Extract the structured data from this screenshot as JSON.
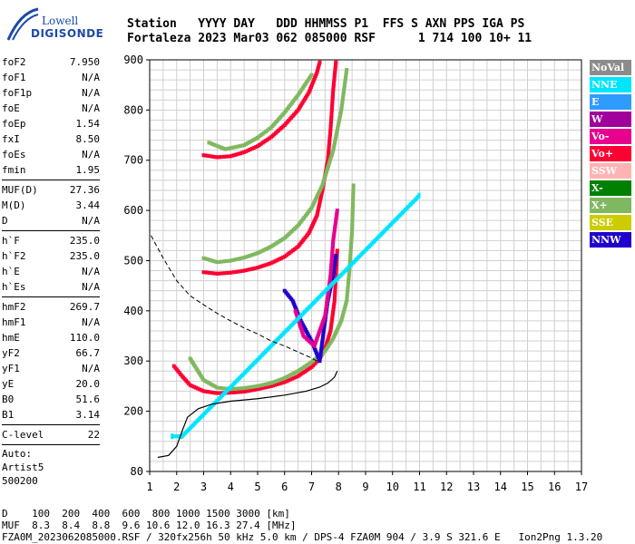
{
  "logo": {
    "line1": "Lowell",
    "line2": "DIGISONDE"
  },
  "header": {
    "line1": "Station   YYYY DAY   DDD HHMMSS P1  FFS S AXN PPS IGA PS",
    "line2": "Fortaleza 2023 Mar03 062 085000 RSF      1 714 100 10+ 11"
  },
  "params": [
    {
      "label": "foF2",
      "value": "7.950"
    },
    {
      "label": "foF1",
      "value": "N/A"
    },
    {
      "label": "foF1p",
      "value": "N/A"
    },
    {
      "label": "foE",
      "value": "N/A"
    },
    {
      "label": "foEp",
      "value": "1.54"
    },
    {
      "label": "fxI",
      "value": "8.50"
    },
    {
      "label": "foEs",
      "value": "N/A"
    },
    {
      "label": "fmin",
      "value": "1.95"
    },
    {
      "sep": true
    },
    {
      "label": "MUF(D)",
      "value": "27.36"
    },
    {
      "label": "M(D)",
      "value": "3.44"
    },
    {
      "label": "D",
      "value": "N/A"
    },
    {
      "sep": true
    },
    {
      "label": "h`F",
      "value": "235.0"
    },
    {
      "label": "h`F2",
      "value": "235.0"
    },
    {
      "label": "h`E",
      "value": "N/A"
    },
    {
      "label": "h`Es",
      "value": "N/A"
    },
    {
      "sep": true
    },
    {
      "label": "hmF2",
      "value": "269.7"
    },
    {
      "label": "hmF1",
      "value": "N/A"
    },
    {
      "label": "hmE",
      "value": "110.0"
    },
    {
      "label": "yF2",
      "value": "66.7"
    },
    {
      "label": "yF1",
      "value": "N/A"
    },
    {
      "label": "yE",
      "value": "20.0"
    },
    {
      "label": "B0",
      "value": "51.6"
    },
    {
      "label": "B1",
      "value": "3.14"
    },
    {
      "sep": true
    },
    {
      "label": "C-level",
      "value": "22"
    },
    {
      "sep": true
    },
    {
      "text": "Auto:"
    },
    {
      "text": "Artist5"
    },
    {
      "text": "500200"
    }
  ],
  "legend": [
    {
      "label": "NoVal",
      "color": "#8c8c8c"
    },
    {
      "label": "NNE",
      "color": "#00e5ff"
    },
    {
      "label": "E",
      "color": "#2f9bff"
    },
    {
      "label": "W",
      "color": "#a0009b"
    },
    {
      "label": "Vo-",
      "color": "#e8008f"
    },
    {
      "label": "Vo+",
      "color": "#ff0033"
    },
    {
      "label": "SSW",
      "color": "#ffb3b3"
    },
    {
      "label": "X-",
      "color": "#008000"
    },
    {
      "label": "X+",
      "color": "#80b860"
    },
    {
      "label": "SSE",
      "color": "#cccc00"
    },
    {
      "label": "NNW",
      "color": "#2000cc"
    }
  ],
  "footer": {
    "line1": "D    100  200  400  600  800 1000 1500 3000 [km]",
    "line2": "MUF  8.3  8.4  8.8  9.6 10.6 12.0 16.3 27.4 [MHz]",
    "line3": "FZA0M_2023062085000.RSF / 320fx256h 50 kHz 5.0 km / DPS-4 FZA0M 904 / 3.9 S 321.6 E   Ion2Png 1.3.20"
  },
  "chart_data": {
    "type": "scatter",
    "xlim": [
      1,
      17
    ],
    "ylim": [
      80,
      900
    ],
    "x_ticks": [
      1,
      2,
      3,
      4,
      5,
      6,
      7,
      8,
      9,
      10,
      11,
      12,
      13,
      14,
      15,
      16,
      17
    ],
    "y_ticks": [
      80,
      200,
      300,
      400,
      500,
      600,
      700,
      800,
      900
    ],
    "grid": true,
    "xlabel": "",
    "ylabel": "",
    "series": [
      {
        "color": "#ff0033",
        "points": [
          [
            1.9,
            290
          ],
          [
            2.2,
            270
          ],
          [
            2.5,
            252
          ],
          [
            3.0,
            240
          ],
          [
            3.5,
            236
          ],
          [
            4.0,
            237
          ],
          [
            4.5,
            239
          ],
          [
            5.0,
            244
          ],
          [
            5.5,
            250
          ],
          [
            6.0,
            258
          ],
          [
            6.5,
            270
          ],
          [
            7.0,
            288
          ],
          [
            7.3,
            305
          ],
          [
            7.5,
            325
          ],
          [
            7.7,
            360
          ],
          [
            7.85,
            420
          ],
          [
            7.95,
            520
          ]
        ]
      },
      {
        "color": "#80b860",
        "points": [
          [
            2.5,
            305
          ],
          [
            3.0,
            262
          ],
          [
            3.5,
            247
          ],
          [
            4.0,
            244
          ],
          [
            4.5,
            246
          ],
          [
            5.0,
            250
          ],
          [
            5.5,
            256
          ],
          [
            6.0,
            266
          ],
          [
            6.5,
            280
          ],
          [
            7.0,
            298
          ],
          [
            7.5,
            320
          ],
          [
            7.8,
            345
          ],
          [
            8.1,
            380
          ],
          [
            8.3,
            420
          ],
          [
            8.4,
            480
          ],
          [
            8.5,
            560
          ],
          [
            8.55,
            650
          ]
        ]
      },
      {
        "color": "#ff0033",
        "points": [
          [
            3.0,
            477
          ],
          [
            3.5,
            474
          ],
          [
            4.0,
            476
          ],
          [
            4.5,
            480
          ],
          [
            5.0,
            486
          ],
          [
            5.5,
            495
          ],
          [
            6.0,
            508
          ],
          [
            6.5,
            528
          ],
          [
            6.9,
            555
          ],
          [
            7.2,
            590
          ],
          [
            7.4,
            640
          ],
          [
            7.6,
            700
          ],
          [
            7.7,
            760
          ],
          [
            7.8,
            840
          ],
          [
            7.9,
            895
          ]
        ]
      },
      {
        "color": "#80b860",
        "points": [
          [
            3.0,
            505
          ],
          [
            3.5,
            497
          ],
          [
            4.0,
            500
          ],
          [
            4.5,
            506
          ],
          [
            5.0,
            515
          ],
          [
            5.5,
            528
          ],
          [
            6.0,
            545
          ],
          [
            6.5,
            570
          ],
          [
            7.0,
            605
          ],
          [
            7.4,
            650
          ],
          [
            7.8,
            720
          ],
          [
            8.1,
            800
          ],
          [
            8.3,
            880
          ]
        ]
      },
      {
        "color": "#ff0033",
        "points": [
          [
            3.0,
            710
          ],
          [
            3.5,
            706
          ],
          [
            4.0,
            708
          ],
          [
            4.5,
            716
          ],
          [
            5.0,
            728
          ],
          [
            5.5,
            746
          ],
          [
            6.0,
            770
          ],
          [
            6.5,
            800
          ],
          [
            6.9,
            835
          ],
          [
            7.2,
            875
          ],
          [
            7.3,
            895
          ]
        ]
      },
      {
        "color": "#80b860",
        "points": [
          [
            3.2,
            735
          ],
          [
            3.8,
            722
          ],
          [
            4.5,
            730
          ],
          [
            5.0,
            745
          ],
          [
            5.5,
            765
          ],
          [
            6.0,
            795
          ],
          [
            6.5,
            830
          ],
          [
            7.0,
            870
          ]
        ]
      },
      {
        "color": "#2000cc",
        "points": [
          [
            6.0,
            440
          ],
          [
            6.3,
            420
          ],
          [
            6.6,
            380
          ],
          [
            7.0,
            340
          ],
          [
            7.3,
            300
          ],
          [
            7.6,
            420
          ],
          [
            7.8,
            470
          ],
          [
            7.9,
            510
          ]
        ]
      },
      {
        "color": "#e8008f",
        "points": [
          [
            6.4,
            400
          ],
          [
            6.7,
            350
          ],
          [
            7.1,
            330
          ],
          [
            7.5,
            390
          ],
          [
            7.7,
            470
          ],
          [
            7.8,
            540
          ],
          [
            7.95,
            600
          ]
        ]
      },
      {
        "color": "#00e5ff",
        "points": [
          [
            1.85,
            150
          ],
          [
            2.2,
            150
          ],
          [
            11.0,
            630
          ]
        ]
      }
    ],
    "profile": [
      [
        1.3,
        108
      ],
      [
        1.7,
        112
      ],
      [
        2.0,
        130
      ],
      [
        2.2,
        160
      ],
      [
        2.4,
        188
      ],
      [
        2.8,
        205
      ],
      [
        3.3,
        214
      ],
      [
        4.0,
        220
      ],
      [
        5.0,
        225
      ],
      [
        6.0,
        232
      ],
      [
        6.8,
        240
      ],
      [
        7.3,
        248
      ],
      [
        7.6,
        256
      ],
      [
        7.85,
        268
      ],
      [
        7.95,
        280
      ]
    ],
    "dashed": [
      [
        1.05,
        550
      ],
      [
        1.5,
        505
      ],
      [
        2.0,
        460
      ],
      [
        2.5,
        430
      ],
      [
        3.0,
        412
      ],
      [
        3.5,
        395
      ],
      [
        4.0,
        380
      ],
      [
        4.5,
        366
      ],
      [
        5.0,
        354
      ],
      [
        5.5,
        340
      ],
      [
        6.0,
        330
      ],
      [
        6.5,
        318
      ],
      [
        7.0,
        306
      ],
      [
        7.2,
        300
      ]
    ]
  }
}
